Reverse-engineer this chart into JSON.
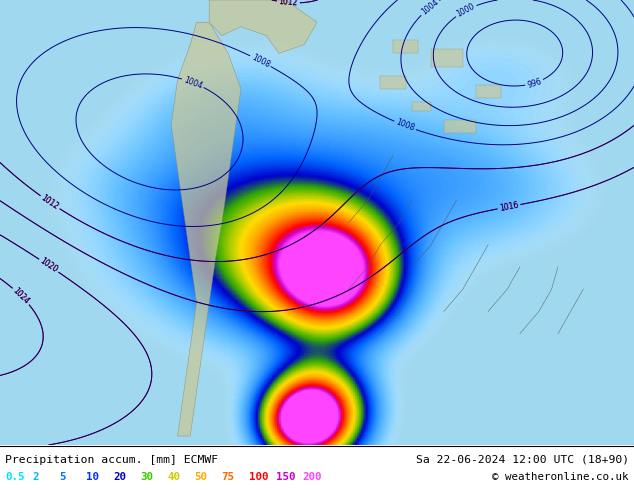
{
  "title_left": "Precipitation accum. [mm] ECMWF",
  "title_right": "Sa 22-06-2024 12:00 UTC (18+90)",
  "copyright": "© weatheronline.co.uk",
  "legend_values": [
    "0.5",
    "2",
    "5",
    "10",
    "20",
    "30",
    "40",
    "50",
    "75",
    "100",
    "150",
    "200"
  ],
  "legend_colors": [
    "#00e5ff",
    "#00bbff",
    "#0077ff",
    "#0033ff",
    "#0000cc",
    "#33cc00",
    "#cccc00",
    "#ffaa00",
    "#ff6600",
    "#ff0000",
    "#cc00cc",
    "#ff44ff"
  ],
  "figsize": [
    6.34,
    4.9
  ],
  "dpi": 100,
  "map_bg": "#a0d8ef",
  "bottom_bg": "#ffffff",
  "isobar_blue": "#000080",
  "isobar_red": "#cc0000",
  "precip_colors": [
    [
      0.0,
      "#c8eeff"
    ],
    [
      0.04,
      "#96d8ff"
    ],
    [
      0.08,
      "#64c0ff"
    ],
    [
      0.14,
      "#3296ff"
    ],
    [
      0.2,
      "#0064ff"
    ],
    [
      0.28,
      "#0000cc"
    ],
    [
      0.36,
      "#33aa00"
    ],
    [
      0.44,
      "#aacc00"
    ],
    [
      0.52,
      "#ffdd00"
    ],
    [
      0.62,
      "#ffaa00"
    ],
    [
      0.74,
      "#ff5500"
    ],
    [
      0.85,
      "#ff0000"
    ],
    [
      0.92,
      "#cc00cc"
    ],
    [
      1.0,
      "#ff44ff"
    ]
  ]
}
